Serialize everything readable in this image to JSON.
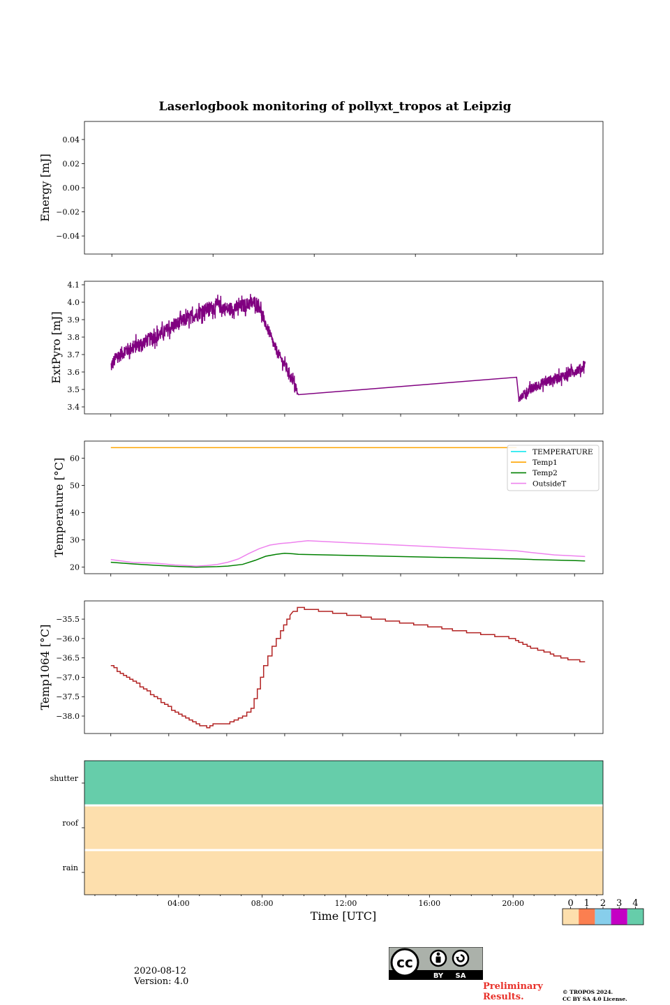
{
  "title": "Laserlogbook monitoring of pollyxt_tropos at Leipzig",
  "footer": {
    "date": "2020-08-12",
    "version": "Version: 4.0",
    "preliminary_line1": "Preliminary",
    "preliminary_line2": "Results.",
    "copyright_line1": "© TROPOS 2024.",
    "copyright_line2": "CC BY SA 4.0 License.",
    "cc_badge": {
      "by": "BY",
      "sa": "SA",
      "cc": "cc"
    }
  },
  "colors": {
    "extpyro": "#800080",
    "temperature": "#00e5ee",
    "temp1": "#ffa500",
    "temp2": "#008000",
    "outsideT": "#ee82ee",
    "temp1064": "#b22222",
    "status_0": "#fddfad",
    "status_1": "#fb7f50",
    "status_2": "#87ceeb",
    "status_3": "#c400c4",
    "status_4": "#66cdaa"
  },
  "chart_data": [
    {
      "id": "energy",
      "type": "line",
      "ylabel": "Energy [mJ]",
      "ylim": [
        -0.055,
        0.055
      ],
      "yticks": [
        0.04,
        0.02,
        0.0,
        -0.02,
        -0.04
      ],
      "ytick_labels": [
        "0.04",
        "0.02",
        "0.00",
        "−0.02",
        "−0.04"
      ],
      "xlim": [
        -0.3,
        24.3
      ],
      "xticks_minor": [
        1,
        5.8,
        10.6,
        15.4,
        20.2,
        25
      ],
      "series": []
    },
    {
      "id": "extpyro",
      "type": "line",
      "ylabel": "ExtPyro [mJ]",
      "ylim": [
        3.36,
        4.12
      ],
      "yticks": [
        3.4,
        3.5,
        3.6,
        3.7,
        3.8,
        3.9,
        4.0,
        4.1
      ],
      "ytick_labels": [
        "3.4",
        "3.5",
        "3.6",
        "3.7",
        "3.8",
        "3.9",
        "4.0",
        "4.1"
      ],
      "xlim": [
        -0.3,
        24.3
      ],
      "xticks_minor": [
        0.95,
        3.7,
        6.45,
        9.2,
        11.95,
        14.7,
        17.45,
        20.2,
        22.95
      ],
      "series": [
        {
          "name": "ExtPyro",
          "color_key": "extpyro",
          "x": [
            0.95,
            1.2,
            1.6,
            2.0,
            2.5,
            3.0,
            3.5,
            4.0,
            4.5,
            5.0,
            5.5,
            6.0,
            6.5,
            7.0,
            7.5,
            7.8,
            8.0,
            8.2,
            8.45,
            8.7,
            9.0,
            9.3,
            9.6,
            9.8,
            9.85,
            20.2,
            20.3,
            20.6,
            21.0,
            21.5,
            22.0,
            22.5,
            23.0,
            23.3,
            23.45
          ],
          "y": [
            3.63,
            3.68,
            3.72,
            3.74,
            3.77,
            3.8,
            3.83,
            3.87,
            3.9,
            3.93,
            3.96,
            3.98,
            3.96,
            3.97,
            3.99,
            4.0,
            3.98,
            3.9,
            3.83,
            3.75,
            3.68,
            3.62,
            3.55,
            3.48,
            3.47,
            3.57,
            3.44,
            3.48,
            3.51,
            3.54,
            3.56,
            3.58,
            3.61,
            3.62,
            3.66
          ],
          "noise": [
            0.04,
            0.04,
            0.04,
            0.04,
            0.04,
            0.04,
            0.04,
            0.04,
            0.04,
            0.04,
            0.04,
            0.04,
            0.04,
            0.04,
            0.04,
            0.04,
            0.04,
            0.03,
            0.03,
            0.03,
            0.03,
            0.03,
            0.03,
            0.03,
            0.0,
            0.0,
            0.02,
            0.03,
            0.03,
            0.03,
            0.03,
            0.03,
            0.03,
            0.03,
            0.03
          ]
        }
      ]
    },
    {
      "id": "temperature",
      "type": "line",
      "ylabel": "Temperature [°C]",
      "ylim": [
        17.6,
        66.3
      ],
      "yticks": [
        20,
        30,
        40,
        50,
        60
      ],
      "ytick_labels": [
        "20",
        "30",
        "40",
        "50",
        "60"
      ],
      "xlim": [
        -0.3,
        24.3
      ],
      "xticks_minor": [
        0.95,
        3.7,
        6.45,
        9.2,
        11.95,
        14.7,
        17.45,
        20.2,
        22.95
      ],
      "legend": {
        "loc": "upper right",
        "entries": [
          "TEMPERATURE",
          "Temp1",
          "Temp2",
          "OutsideT"
        ]
      },
      "series": [
        {
          "name": "TEMPERATURE",
          "color_key": "temperature",
          "x": [],
          "y": []
        },
        {
          "name": "Temp1",
          "color_key": "temp1",
          "x": [
            0.95,
            20.2
          ],
          "y": [
            63.9,
            63.9
          ]
        },
        {
          "name": "Temp2",
          "color_key": "temp2",
          "x": [
            0.95,
            2.0,
            3.0,
            4.0,
            5.0,
            6.0,
            6.5,
            7.2,
            7.8,
            8.3,
            8.8,
            9.2,
            9.6,
            9.85,
            20.2,
            21.0,
            22.0,
            23.0,
            23.45
          ],
          "y": [
            21.8,
            21.2,
            20.7,
            20.3,
            20.0,
            20.2,
            20.4,
            21.0,
            22.5,
            24.0,
            24.7,
            25.1,
            24.9,
            24.7,
            23.0,
            22.8,
            22.6,
            22.4,
            22.3
          ]
        },
        {
          "name": "OutsideT",
          "color_key": "outsideT",
          "x": [
            0.95,
            2.0,
            3.0,
            4.0,
            5.0,
            5.5,
            6.0,
            6.5,
            7.0,
            7.5,
            8.0,
            8.5,
            9.0,
            9.5,
            9.8,
            10.3,
            20.2,
            21.0,
            22.0,
            23.0,
            23.45
          ],
          "y": [
            22.8,
            21.7,
            21.5,
            20.8,
            20.4,
            20.6,
            21.0,
            21.8,
            23.0,
            25.0,
            26.8,
            28.1,
            28.7,
            29.0,
            29.3,
            29.7,
            26.0,
            25.3,
            24.5,
            24.1,
            23.9
          ]
        }
      ]
    },
    {
      "id": "temp1064",
      "type": "line",
      "ylabel": "Temp1064 [°C]",
      "ylim": [
        -38.45,
        -35.03
      ],
      "yticks": [
        -35.5,
        -36.0,
        -36.5,
        -37.0,
        -37.5,
        -38.0
      ],
      "ytick_labels": [
        "−35.5",
        "−36.0",
        "−36.5",
        "−37.0",
        "−37.5",
        "−38.0"
      ],
      "xlim": [
        -0.3,
        24.3
      ],
      "xticks_minor": [
        0.95,
        3.7,
        6.45,
        9.2,
        11.95,
        14.7,
        17.45,
        20.2,
        22.95
      ],
      "series": [
        {
          "name": "Temp1064",
          "color_key": "temp1064",
          "x": [
            0.95,
            1.4,
            2.0,
            2.5,
            3.0,
            3.5,
            4.0,
            4.5,
            5.0,
            5.5,
            5.8,
            6.4,
            6.8,
            7.2,
            7.6,
            7.9,
            8.2,
            8.6,
            9.0,
            9.3,
            9.6,
            9.8,
            20.0,
            20.3,
            20.7,
            21.2,
            21.8,
            22.3,
            22.8,
            23.2,
            23.45
          ],
          "y": [
            -36.7,
            -36.9,
            -37.1,
            -37.3,
            -37.5,
            -37.7,
            -37.9,
            -38.05,
            -38.2,
            -38.3,
            -38.2,
            -38.2,
            -38.1,
            -38.0,
            -37.8,
            -37.3,
            -36.7,
            -36.2,
            -35.8,
            -35.5,
            -35.3,
            -35.2,
            -36.0,
            -36.1,
            -36.2,
            -36.3,
            -36.4,
            -36.5,
            -36.55,
            -36.6,
            -36.6
          ]
        }
      ]
    },
    {
      "id": "status",
      "type": "heatmap",
      "xlabel": "Time [UTC]",
      "rows": [
        "shutter",
        "roof",
        "rain"
      ],
      "row_values": [
        4,
        0,
        0
      ],
      "xlim": [
        -0.5,
        24.3
      ],
      "xticks": [
        4,
        8,
        12,
        16,
        20
      ],
      "xtick_labels": [
        "04:00",
        "08:00",
        "12:00",
        "16:00",
        "20:00"
      ],
      "colorbar": {
        "values": [
          0,
          1,
          2,
          3,
          4
        ],
        "labels": [
          "0",
          "1",
          "2",
          "3",
          "4"
        ]
      }
    }
  ]
}
